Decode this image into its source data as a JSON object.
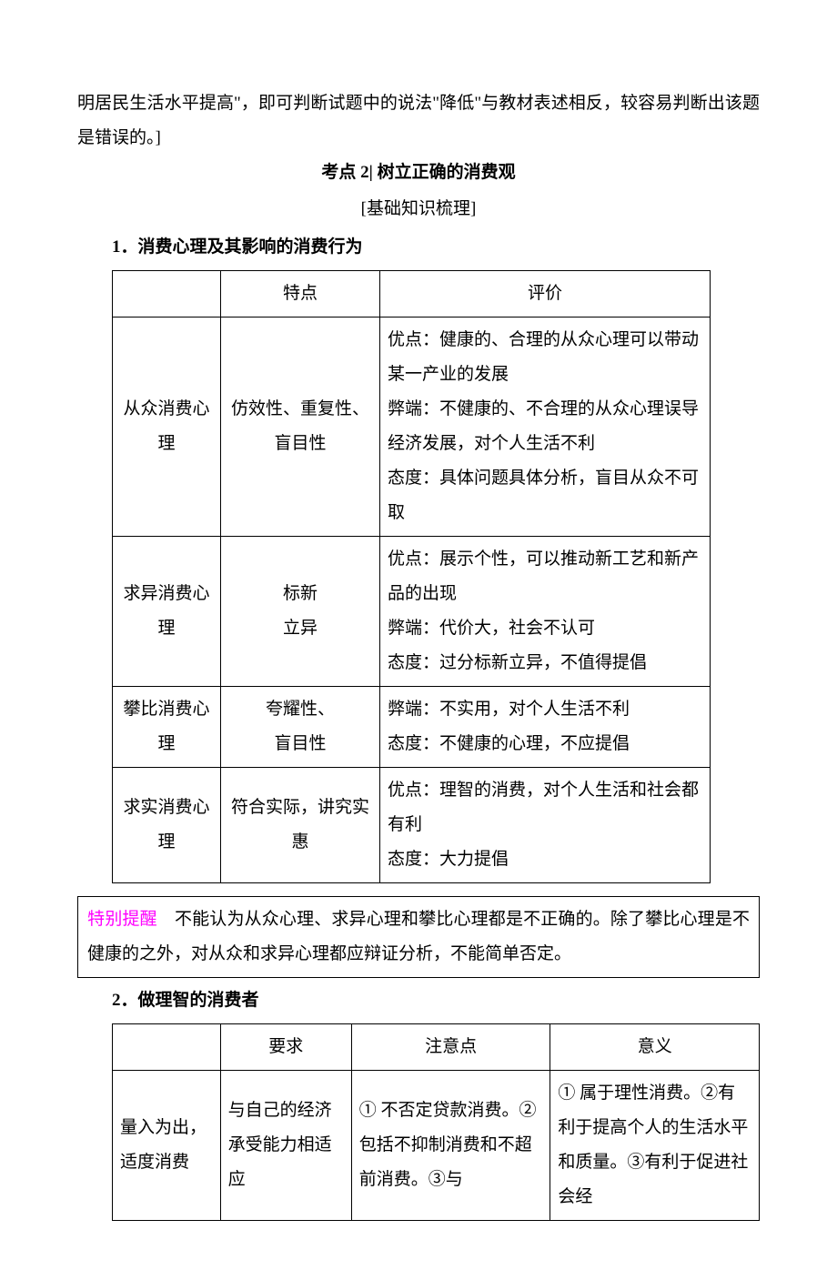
{
  "intro_para": "明居民生活水平提高\"，即可判断试题中的说法\"降低\"与教材表述相反，较容易判断出该题是错误的。]",
  "kp2_title": "考点 2| 树立正确的消费观",
  "kp2_sub": "[基础知识梳理]",
  "sec1_title": "1．消费心理及其影响的消费行为",
  "t1": {
    "h1": "特点",
    "h2": "评价",
    "rows": [
      {
        "a": "从众消费心理",
        "b": "仿效性、重复性、盲目性",
        "c": "优点：健康的、合理的从众心理可以带动某一产业的发展\n弊端：不健康的、不合理的从众心理误导经济发展，对个人生活不利\n态度：具体问题具体分析，盲目从众不可取"
      },
      {
        "a": "求异消费心理",
        "b": "标新\n立异",
        "c": "优点：展示个性，可以推动新工艺和新产品的出现\n弊端：代价大，社会不认可\n态度：过分标新立异，不值得提倡"
      },
      {
        "a": "攀比消费心理",
        "b": "夸耀性、\n盲目性",
        "c": "弊端：不实用，对个人生活不利\n态度：不健康的心理，不应提倡"
      },
      {
        "a": "求实消费心理",
        "b": "符合实际，讲究实惠",
        "c": "优点：理智的消费，对个人生活和社会都有利\n态度：大力提倡"
      }
    ]
  },
  "notice_label": "特别提醒",
  "notice_text": "不能认为从众心理、求异心理和攀比心理都是不正确的。除了攀比心理是不健康的之外，对从众和求异心理都应辩证分析，不能简单否定。",
  "sec2_title": "2．做理智的消费者",
  "t2": {
    "h1": "要求",
    "h2": "注意点",
    "h3": "意义",
    "r1a": "量入为出，适度消费",
    "r1b": "与自己的经济承受能力相适应",
    "r1c": "① 不否定贷款消费。② 包括不抑制消费和不超前消费。③与",
    "r1d": "① 属于理性消费。②有利于提高个人的生活水平和质量。③有利于促进社会经"
  }
}
